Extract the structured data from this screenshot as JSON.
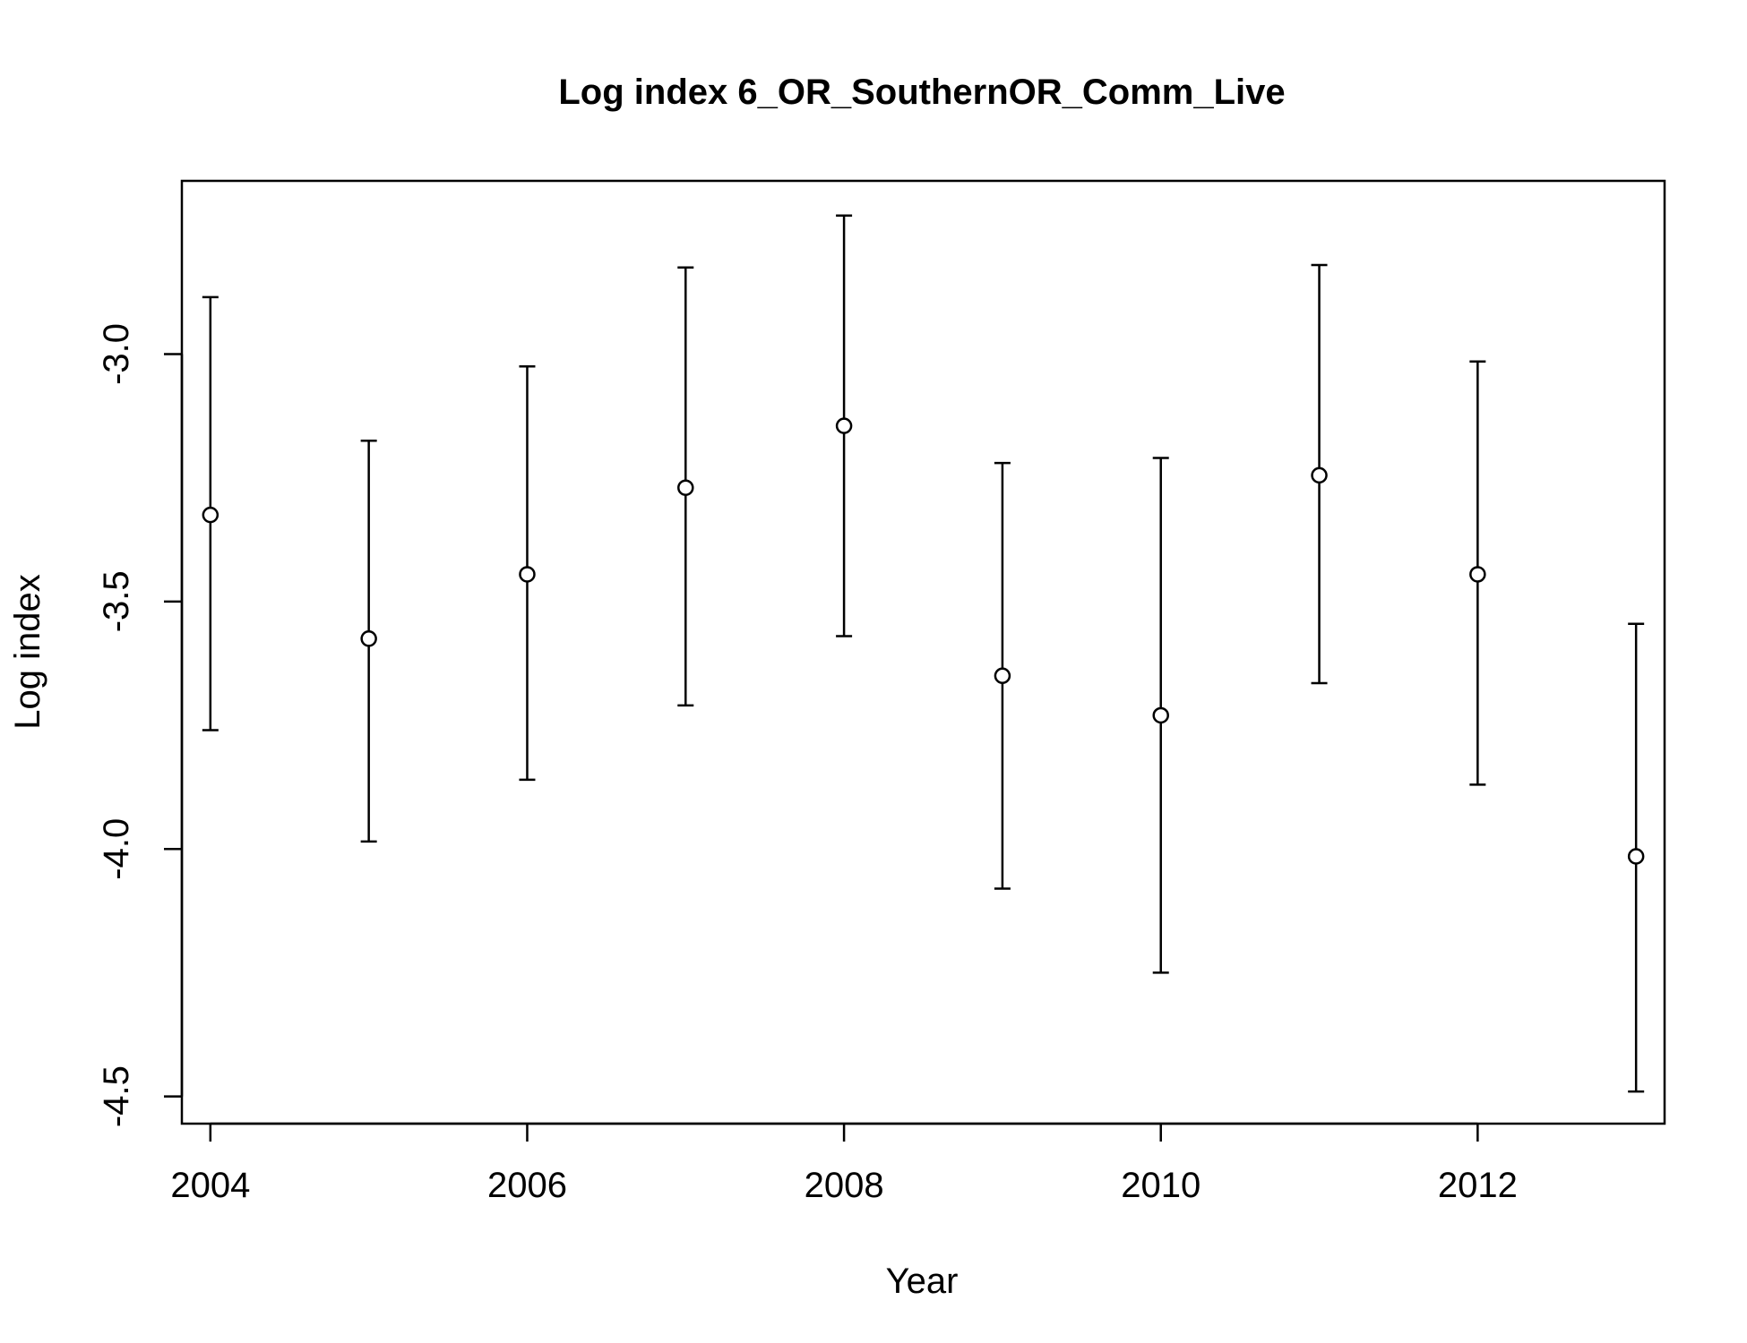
{
  "chart_data": {
    "type": "scatter",
    "title": "Log index 6_OR_SouthernOR_Comm_Live",
    "xlabel": "Year",
    "ylabel": "Log index",
    "x": [
      2004,
      2005,
      2006,
      2007,
      2008,
      2009,
      2010,
      2011,
      2012,
      2013
    ],
    "series": [
      {
        "values": [
          -3.325,
          -3.575,
          -3.445,
          -3.27,
          -3.145,
          -3.65,
          -3.73,
          -3.245,
          -3.445,
          -4.015
        ],
        "lower": [
          -3.76,
          -3.985,
          -3.86,
          -3.71,
          -3.57,
          -4.08,
          -4.25,
          -3.665,
          -3.87,
          -4.49
        ],
        "upper": [
          -2.885,
          -3.175,
          -3.025,
          -2.825,
          -2.72,
          -3.22,
          -3.21,
          -2.82,
          -3.015,
          -3.545
        ]
      }
    ],
    "xlim": [
      2003.82,
      2013.18
    ],
    "ylim": [
      -4.555,
      -2.65
    ],
    "xticks": [
      "2004",
      "2006",
      "2008",
      "2010",
      "2012"
    ],
    "yticks": [
      "-3.0",
      "-3.5",
      "-4.0",
      "-4.5"
    ],
    "grid": false,
    "legend": "none"
  }
}
